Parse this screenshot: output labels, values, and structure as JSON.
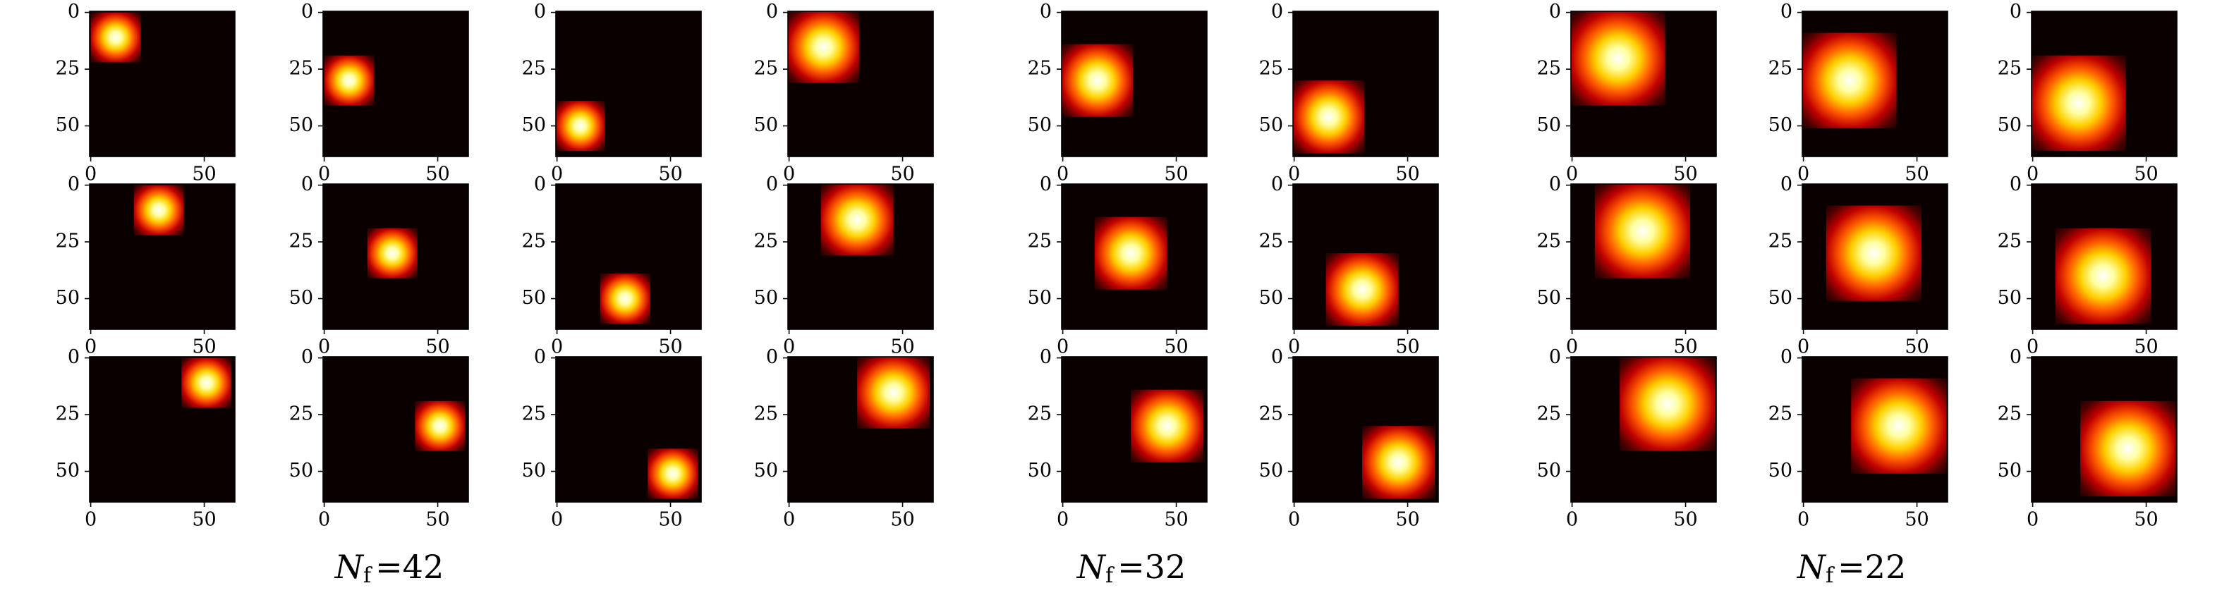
{
  "axes": {
    "xlim": [
      -0.5,
      63.5
    ],
    "ylim": [
      63.5,
      -0.5
    ],
    "xticks": [
      0,
      50
    ],
    "yticks": [
      0,
      25,
      50
    ],
    "colormap": "hot"
  },
  "groups": [
    {
      "label": {
        "symbol": "N",
        "subscript": "f",
        "value": "=42"
      },
      "size": 22,
      "panels": [
        [
          11,
          11
        ],
        [
          11,
          30
        ],
        [
          10,
          50
        ],
        [
          30,
          11
        ],
        [
          30,
          30
        ],
        [
          30,
          50
        ],
        [
          51,
          11
        ],
        [
          51,
          30
        ],
        [
          51,
          51
        ]
      ]
    },
    {
      "label": {
        "symbol": "N",
        "subscript": "f",
        "value": "=32"
      },
      "size": 32,
      "panels": [
        [
          15,
          15
        ],
        [
          15,
          30
        ],
        [
          15,
          46
        ],
        [
          30,
          15
        ],
        [
          30,
          30
        ],
        [
          30,
          46
        ],
        [
          46,
          15
        ],
        [
          46,
          30
        ],
        [
          46,
          46
        ]
      ]
    },
    {
      "label": {
        "symbol": "N",
        "subscript": "f",
        "value": "=22"
      },
      "size": 42,
      "panels": [
        [
          20,
          20
        ],
        [
          20,
          30
        ],
        [
          20,
          40
        ],
        [
          31,
          20
        ],
        [
          31,
          30
        ],
        [
          31,
          40
        ],
        [
          42,
          20
        ],
        [
          42,
          30
        ],
        [
          42,
          40
        ]
      ]
    }
  ]
}
